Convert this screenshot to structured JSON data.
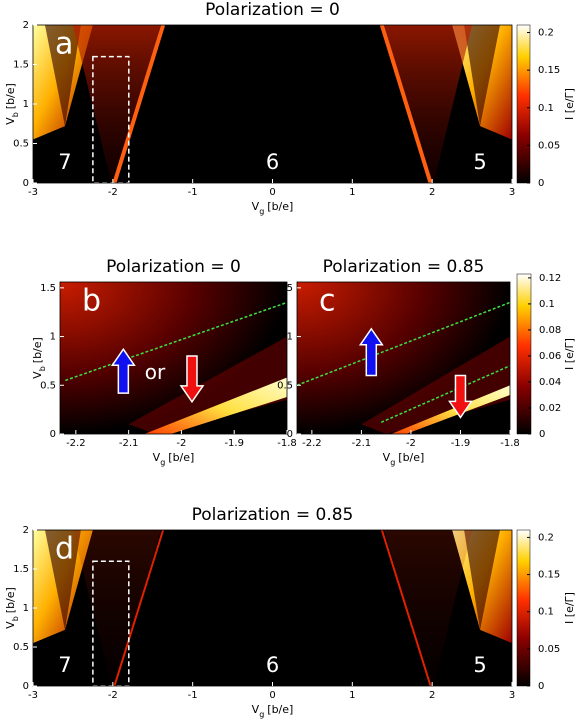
{
  "panels": [
    {
      "title": "Polarization = 0",
      "letter": "a",
      "xlabel": {
        "symbol": "V",
        "subscript": "g",
        "unit": "[b/e]"
      },
      "ylabel": {
        "symbol": "V",
        "subscript": "b",
        "unit": "[b/e]"
      },
      "xlim": [
        -3,
        3
      ],
      "xticks": [
        -3,
        -2,
        -1,
        0,
        1,
        2,
        3
      ],
      "ylim": [
        0,
        2
      ],
      "yticks": [
        0,
        0.5,
        1,
        1.5,
        2
      ],
      "colorbar": {
        "lim": [
          0,
          0.21
        ],
        "ticks": [
          0,
          0.05,
          0.1,
          0.15,
          0.2
        ],
        "label": "I [e/Γ]"
      },
      "region_labels": [
        "7",
        "6",
        "5"
      ]
    },
    {
      "title": "Polarization = 0",
      "letter": "b",
      "xlabel": {
        "symbol": "V",
        "subscript": "g",
        "unit": "[b/e]"
      },
      "ylabel": {
        "symbol": "V",
        "subscript": "b",
        "unit": "[b/e]"
      },
      "xlim": [
        -2.23,
        -1.8
      ],
      "xticks": [
        -2.2,
        -2.1,
        -2,
        -1.9,
        -1.8
      ],
      "ylim": [
        0,
        1.56
      ],
      "yticks": [
        0,
        0.5,
        1,
        1.5
      ],
      "annotation": "or"
    },
    {
      "title": "Polarization = 0.85",
      "letter": "c",
      "xlabel": {
        "symbol": "V",
        "subscript": "g",
        "unit": "[b/e]"
      },
      "xlim": [
        -2.23,
        -1.8
      ],
      "xticks": [
        -2.2,
        -2.1,
        -2,
        -1.9,
        -1.8
      ],
      "ylim": [
        0,
        1.56
      ],
      "yticks": [
        0,
        0.5,
        1,
        1.5
      ],
      "colorbar": {
        "lim": [
          0,
          0.123
        ],
        "ticks": [
          0,
          0.02,
          0.04,
          0.06,
          0.08,
          0.1,
          0.12
        ],
        "label": "I [e/Γ]"
      }
    },
    {
      "title": "Polarization = 0.85",
      "letter": "d",
      "xlabel": {
        "symbol": "V",
        "subscript": "g",
        "unit": "[b/e]"
      },
      "ylabel": {
        "symbol": "V",
        "subscript": "b",
        "unit": "[b/e]"
      },
      "xlim": [
        -3,
        3
      ],
      "xticks": [
        -3,
        -2,
        -1,
        0,
        1,
        2,
        3
      ],
      "ylim": [
        0,
        2
      ],
      "yticks": [
        0,
        0.5,
        1,
        1.5,
        2
      ],
      "colorbar": {
        "lim": [
          0,
          0.21
        ],
        "ticks": [
          0,
          0.05,
          0.1,
          0.15,
          0.2
        ],
        "label": "I [e/Γ]"
      },
      "region_labels": [
        "7",
        "6",
        "5"
      ]
    }
  ]
}
